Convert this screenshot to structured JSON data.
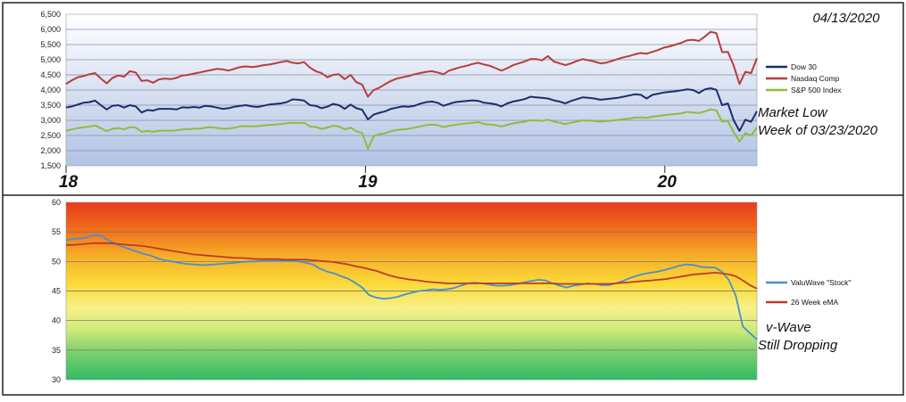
{
  "chart_data": [
    {
      "type": "line",
      "date_label": "04/13/2020",
      "annotation": [
        "Market Low",
        "Week of 03/23/2020"
      ],
      "ylim": [
        1500,
        6500
      ],
      "yticks": [
        "1,500",
        "2,000",
        "2,500",
        "3,000",
        "3,500",
        "4,000",
        "4,500",
        "5,000",
        "5,500",
        "6,000",
        "6,500"
      ],
      "xticks": [
        {
          "label": "18",
          "x": 0
        },
        {
          "label": "19",
          "x": 52
        },
        {
          "label": "20",
          "x": 104
        }
      ],
      "xlim": [
        0,
        120
      ],
      "legend_position": "right",
      "grid": true,
      "series": [
        {
          "name": "Dow 30",
          "color": "#1a2e6e",
          "values": [
            3420,
            3460,
            3520,
            3580,
            3600,
            3650,
            3500,
            3360,
            3480,
            3500,
            3420,
            3500,
            3460,
            3260,
            3340,
            3320,
            3380,
            3380,
            3380,
            3360,
            3430,
            3420,
            3440,
            3420,
            3480,
            3460,
            3420,
            3380,
            3400,
            3450,
            3480,
            3500,
            3460,
            3440,
            3480,
            3520,
            3540,
            3560,
            3600,
            3690,
            3680,
            3650,
            3500,
            3480,
            3400,
            3450,
            3540,
            3500,
            3380,
            3520,
            3400,
            3350,
            3030,
            3190,
            3250,
            3300,
            3380,
            3420,
            3460,
            3450,
            3480,
            3550,
            3600,
            3620,
            3580,
            3480,
            3540,
            3600,
            3620,
            3640,
            3660,
            3640,
            3580,
            3560,
            3530,
            3460,
            3560,
            3620,
            3660,
            3700,
            3780,
            3760,
            3740,
            3720,
            3660,
            3620,
            3560,
            3640,
            3700,
            3760,
            3740,
            3720,
            3680,
            3700,
            3720,
            3740,
            3780,
            3820,
            3860,
            3840,
            3720,
            3840,
            3880,
            3920,
            3940,
            3960,
            3990,
            4020,
            4000,
            3900,
            4020,
            4060,
            4010,
            3500,
            3560,
            3000,
            2650,
            3020,
            2950,
            3300
          ]
        },
        {
          "name": "Nasdaq Comp",
          "color": "#b83c3c",
          "values": [
            4200,
            4320,
            4420,
            4460,
            4520,
            4560,
            4380,
            4220,
            4400,
            4480,
            4440,
            4620,
            4580,
            4300,
            4320,
            4240,
            4350,
            4380,
            4360,
            4400,
            4480,
            4500,
            4540,
            4580,
            4620,
            4660,
            4700,
            4680,
            4640,
            4700,
            4760,
            4780,
            4760,
            4780,
            4820,
            4840,
            4880,
            4920,
            4960,
            4900,
            4880,
            4920,
            4740,
            4620,
            4560,
            4420,
            4500,
            4520,
            4360,
            4500,
            4260,
            4180,
            3780,
            4000,
            4080,
            4200,
            4300,
            4380,
            4420,
            4460,
            4520,
            4560,
            4600,
            4620,
            4580,
            4520,
            4640,
            4700,
            4760,
            4800,
            4860,
            4900,
            4840,
            4800,
            4720,
            4640,
            4720,
            4820,
            4880,
            4940,
            5020,
            5020,
            4980,
            5120,
            4940,
            4880,
            4820,
            4880,
            4960,
            5020,
            4980,
            4940,
            4880,
            4900,
            4960,
            5020,
            5080,
            5120,
            5180,
            5220,
            5200,
            5260,
            5320,
            5400,
            5440,
            5500,
            5560,
            5640,
            5660,
            5620,
            5760,
            5920,
            5880,
            5250,
            5260,
            4800,
            4200,
            4600,
            4560,
            5050
          ]
        },
        {
          "name": "S&P 500 Index",
          "color": "#8fbc3c",
          "values": [
            2650,
            2700,
            2740,
            2770,
            2790,
            2830,
            2740,
            2640,
            2720,
            2740,
            2700,
            2780,
            2760,
            2620,
            2650,
            2620,
            2660,
            2660,
            2660,
            2670,
            2700,
            2710,
            2720,
            2730,
            2760,
            2770,
            2750,
            2720,
            2730,
            2760,
            2800,
            2810,
            2800,
            2810,
            2830,
            2850,
            2860,
            2880,
            2900,
            2920,
            2910,
            2920,
            2800,
            2780,
            2720,
            2760,
            2820,
            2800,
            2700,
            2760,
            2640,
            2580,
            2060,
            2480,
            2540,
            2580,
            2640,
            2680,
            2700,
            2720,
            2760,
            2800,
            2840,
            2860,
            2840,
            2780,
            2820,
            2850,
            2880,
            2900,
            2920,
            2940,
            2880,
            2860,
            2840,
            2800,
            2850,
            2900,
            2930,
            2960,
            3000,
            3000,
            2980,
            3020,
            2960,
            2920,
            2880,
            2920,
            2960,
            3000,
            2990,
            2980,
            2960,
            2970,
            2990,
            3010,
            3040,
            3060,
            3090,
            3100,
            3080,
            3120,
            3140,
            3170,
            3190,
            3210,
            3230,
            3280,
            3260,
            3240,
            3290,
            3360,
            3330,
            2960,
            2980,
            2600,
            2300,
            2580,
            2500,
            2770
          ]
        }
      ]
    },
    {
      "type": "line",
      "annotation": [
        "v-Wave",
        "Still Dropping"
      ],
      "ylim": [
        30,
        60
      ],
      "yticks": [
        "30",
        "35",
        "40",
        "45",
        "50",
        "55",
        "60"
      ],
      "legend_position": "right",
      "grid": true,
      "background": "gradient",
      "series": [
        {
          "name": "ValuWave \"Stock\"",
          "color": "#4a8fd0",
          "values": [
            53.6,
            53.8,
            53.9,
            54.1,
            54.5,
            54.3,
            53.6,
            53.0,
            52.5,
            52.1,
            51.7,
            51.3,
            51.0,
            50.5,
            50.2,
            50.0,
            49.8,
            49.6,
            49.5,
            49.4,
            49.4,
            49.5,
            49.6,
            49.7,
            49.8,
            49.9,
            50.0,
            50.0,
            50.1,
            50.1,
            50.1,
            50.1,
            50.1,
            50.0,
            49.8,
            49.5,
            48.8,
            48.3,
            48.0,
            47.5,
            47.1,
            46.4,
            45.6,
            44.3,
            43.9,
            43.7,
            43.8,
            44.0,
            44.4,
            44.7,
            45.0,
            45.1,
            45.3,
            45.2,
            45.3,
            45.5,
            45.9,
            46.3,
            46.4,
            46.3,
            46.1,
            45.9,
            45.9,
            46.0,
            46.2,
            46.5,
            46.7,
            46.9,
            46.8,
            46.3,
            45.9,
            45.6,
            45.9,
            46.1,
            46.3,
            46.2,
            46.0,
            46.0,
            46.3,
            46.7,
            47.2,
            47.6,
            47.9,
            48.1,
            48.3,
            48.6,
            48.9,
            49.3,
            49.5,
            49.4,
            49.1,
            49.0,
            49.0,
            48.3,
            46.9,
            44.2,
            39.0,
            37.9,
            36.8
          ]
        },
        {
          "name": "26 Week eMA",
          "color": "#c0392b",
          "values": [
            52.8,
            52.8,
            52.9,
            53.0,
            53.1,
            53.1,
            53.1,
            53.0,
            52.9,
            52.8,
            52.7,
            52.6,
            52.4,
            52.2,
            52.0,
            51.8,
            51.6,
            51.4,
            51.2,
            51.1,
            51.0,
            50.9,
            50.8,
            50.7,
            50.6,
            50.6,
            50.5,
            50.4,
            50.4,
            50.4,
            50.4,
            50.3,
            50.3,
            50.3,
            50.3,
            50.2,
            50.1,
            50.0,
            49.9,
            49.7,
            49.5,
            49.2,
            49.0,
            48.7,
            48.4,
            48.0,
            47.6,
            47.3,
            47.1,
            46.9,
            46.8,
            46.6,
            46.5,
            46.4,
            46.3,
            46.3,
            46.3,
            46.3,
            46.3,
            46.3,
            46.3,
            46.3,
            46.3,
            46.3,
            46.3,
            46.3,
            46.3,
            46.3,
            46.3,
            46.3,
            46.2,
            46.2,
            46.2,
            46.2,
            46.2,
            46.2,
            46.2,
            46.2,
            46.3,
            46.4,
            46.5,
            46.6,
            46.7,
            46.8,
            46.9,
            47.0,
            47.2,
            47.4,
            47.6,
            47.8,
            47.9,
            48.0,
            48.1,
            48.0,
            47.8,
            47.5,
            46.8,
            46.0,
            45.4
          ]
        }
      ]
    }
  ]
}
